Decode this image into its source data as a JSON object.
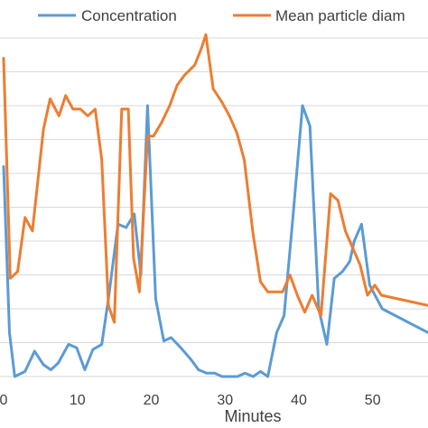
{
  "chart_data": {
    "type": "line",
    "xlabel": "Minutes",
    "ylabel": "",
    "xlim": [
      0,
      57.5
    ],
    "ylim": [
      0,
      10
    ],
    "x_ticks": [
      "0",
      "10",
      "20",
      "30",
      "40",
      "50"
    ],
    "grid": true,
    "legend_position": "top",
    "series": [
      {
        "name": "Concentration",
        "color": "#5B9BD5",
        "points": [
          [
            0,
            6.2
          ],
          [
            0.8,
            1.3
          ],
          [
            1.5,
            0.0
          ],
          [
            2.9,
            0.15
          ],
          [
            4.2,
            0.75
          ],
          [
            5.4,
            0.35
          ],
          [
            6.4,
            0.2
          ],
          [
            7.4,
            0.4
          ],
          [
            8.8,
            0.95
          ],
          [
            9.9,
            0.85
          ],
          [
            11.0,
            0.2
          ],
          [
            12.1,
            0.8
          ],
          [
            13.3,
            0.95
          ],
          [
            14.2,
            2.3
          ],
          [
            15.5,
            4.5
          ],
          [
            16.6,
            4.4
          ],
          [
            17.7,
            4.8
          ],
          [
            18.6,
            3.0
          ],
          [
            19.5,
            8.0
          ],
          [
            20.6,
            2.3
          ],
          [
            21.7,
            1.05
          ],
          [
            22.7,
            1.15
          ],
          [
            24.0,
            0.85
          ],
          [
            25.4,
            0.5
          ],
          [
            26.4,
            0.2
          ],
          [
            27.5,
            0.1
          ],
          [
            28.6,
            0.1
          ],
          [
            29.6,
            0.0
          ],
          [
            31.7,
            0.0
          ],
          [
            32.7,
            0.1
          ],
          [
            33.8,
            0.0
          ],
          [
            34.8,
            0.15
          ],
          [
            35.8,
            0.0
          ],
          [
            37.0,
            1.3
          ],
          [
            38.0,
            1.8
          ],
          [
            39.2,
            4.7
          ],
          [
            40.5,
            8.0
          ],
          [
            41.5,
            7.4
          ],
          [
            42.7,
            2.0
          ],
          [
            43.8,
            0.95
          ],
          [
            44.8,
            2.9
          ],
          [
            45.9,
            3.1
          ],
          [
            46.9,
            3.4
          ],
          [
            47.5,
            4.0
          ],
          [
            48.5,
            4.5
          ],
          [
            49.6,
            2.7
          ],
          [
            51.3,
            2.0
          ],
          [
            57.5,
            1.3
          ]
        ]
      },
      {
        "name": "Mean particle diam",
        "color": "#ED7D31",
        "points": [
          [
            0,
            9.4
          ],
          [
            0.9,
            2.9
          ],
          [
            1.9,
            3.1
          ],
          [
            2.9,
            4.7
          ],
          [
            3.9,
            4.3
          ],
          [
            5.4,
            7.3
          ],
          [
            6.3,
            8.2
          ],
          [
            7.5,
            7.7
          ],
          [
            8.4,
            8.3
          ],
          [
            9.4,
            7.9
          ],
          [
            10.4,
            7.9
          ],
          [
            11.4,
            7.7
          ],
          [
            12.4,
            7.9
          ],
          [
            13.3,
            6.4
          ],
          [
            14.2,
            2.1
          ],
          [
            15.0,
            1.6
          ],
          [
            16.0,
            7.9
          ],
          [
            16.9,
            7.9
          ],
          [
            17.6,
            3.5
          ],
          [
            18.4,
            2.5
          ],
          [
            19.5,
            7.1
          ],
          [
            20.3,
            7.1
          ],
          [
            21.4,
            7.5
          ],
          [
            22.5,
            8.0
          ],
          [
            23.5,
            8.6
          ],
          [
            24.5,
            8.9
          ],
          [
            25.9,
            9.2
          ],
          [
            26.8,
            9.7
          ],
          [
            27.4,
            10.1
          ],
          [
            28.4,
            8.5
          ],
          [
            29.6,
            8.1
          ],
          [
            30.6,
            7.7
          ],
          [
            31.6,
            7.2
          ],
          [
            32.6,
            6.4
          ],
          [
            33.8,
            4.2
          ],
          [
            34.8,
            2.8
          ],
          [
            35.8,
            2.5
          ],
          [
            36.8,
            2.5
          ],
          [
            37.8,
            2.5
          ],
          [
            38.8,
            3.0
          ],
          [
            39.8,
            2.4
          ],
          [
            40.8,
            1.9
          ],
          [
            41.8,
            2.4
          ],
          [
            43.0,
            1.8
          ],
          [
            44.3,
            5.4
          ],
          [
            45.3,
            5.2
          ],
          [
            46.3,
            4.3
          ],
          [
            47.3,
            3.8
          ],
          [
            48.3,
            3.3
          ],
          [
            49.3,
            2.4
          ],
          [
            50.3,
            2.7
          ],
          [
            51.2,
            2.4
          ],
          [
            57.5,
            2.1
          ]
        ]
      }
    ]
  }
}
